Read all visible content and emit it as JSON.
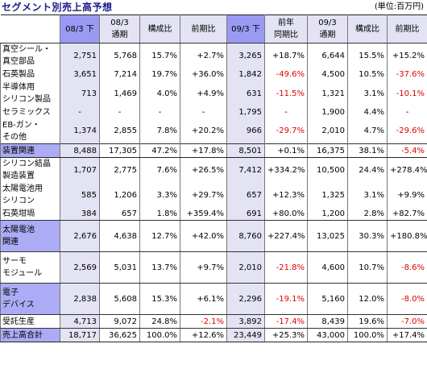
{
  "title": "セグメント別売上高予想",
  "unit": "(単位:百万円)",
  "columns": [
    {
      "label": "08/3 下",
      "style": "hb"
    },
    {
      "label": "08/3\n通期",
      "style": "lav"
    },
    {
      "label": "構成比",
      "style": "lav"
    },
    {
      "label": "前期比",
      "style": "lav"
    },
    {
      "label": "09/3 下",
      "style": "hb"
    },
    {
      "label": "前年\n同期比",
      "style": "lav"
    },
    {
      "label": "09/3\n通期",
      "style": "lav"
    },
    {
      "label": "構成比",
      "style": "lav"
    },
    {
      "label": "前期比",
      "style": "lav"
    }
  ],
  "rows": [
    {
      "label": "真空シール・\n真空部品",
      "h": 31,
      "cls": "",
      "label_style": "",
      "values": [
        "2,751",
        "5,768",
        "15.7%",
        "+2.7%",
        "3,265",
        "+18.7%",
        "6,644",
        "15.5%",
        "+15.2%"
      ]
    },
    {
      "label": "石英製品",
      "h": 16,
      "cls": "",
      "label_style": "",
      "values": [
        "3,651",
        "7,214",
        "19.7%",
        "+36.0%",
        "1,842",
        "-49.6%",
        "4,500",
        "10.5%",
        "-37.6%"
      ]
    },
    {
      "label": "半導体用\nシリコン製品",
      "h": 31,
      "cls": "",
      "label_style": "",
      "values": [
        "713",
        "1,469",
        "4.0%",
        "+4.9%",
        "631",
        "-11.5%",
        "1,321",
        "3.1%",
        "-10.1%"
      ]
    },
    {
      "label": "セラミックス",
      "h": 16,
      "cls": "",
      "label_style": "",
      "values": [
        "-",
        "-",
        "-",
        "-",
        "1,795",
        "-",
        "1,900",
        "4.4%",
        "-"
      ]
    },
    {
      "label": "EB-ガン・\nその他",
      "h": 31,
      "cls": "",
      "label_style": "",
      "values": [
        "1,374",
        "2,855",
        "7.8%",
        "+20.2%",
        "966",
        "-29.7%",
        "2,010",
        "4.7%",
        "-29.6%"
      ]
    },
    {
      "label": "装置関連",
      "h": 17,
      "cls": "subtotal",
      "label_style": "blue",
      "values": [
        "8,488",
        "17,305",
        "47.2%",
        "+17.8%",
        "8,501",
        "+0.1%",
        "16,375",
        "38.1%",
        "-5.4%"
      ]
    },
    {
      "label": "シリコン結晶\n製造装置",
      "h": 31,
      "cls": "",
      "label_style": "",
      "values": [
        "1,707",
        "2,775",
        "7.6%",
        "+26.5%",
        "7,412",
        "+334.2%",
        "10,500",
        "24.4%",
        "+278.4%"
      ]
    },
    {
      "label": "太陽電池用\nシリコン",
      "h": 31,
      "cls": "",
      "label_style": "",
      "values": [
        "585",
        "1,206",
        "3.3%",
        "+29.7%",
        "657",
        "+12.3%",
        "1,325",
        "3.1%",
        "+9.9%"
      ]
    },
    {
      "label": "石英坩堝",
      "h": 16,
      "cls": "sep",
      "label_style": "",
      "values": [
        "384",
        "657",
        "1.8%",
        "+359.4%",
        "691",
        "+80.0%",
        "1,200",
        "2.8%",
        "+82.7%"
      ]
    },
    {
      "label": "太陽電池\n関連",
      "h": 39,
      "cls": "sep",
      "label_style": "blue",
      "values": [
        "2,676",
        "4,638",
        "12.7%",
        "+42.0%",
        "8,760",
        "+227.4%",
        "13,025",
        "30.3%",
        "+180.8%"
      ]
    },
    {
      "label": "サーモ\nモジュール",
      "h": 39,
      "cls": "sep",
      "label_style": "",
      "values": [
        "2,569",
        "5,031",
        "13.7%",
        "+9.7%",
        "2,010",
        "-21.8%",
        "4,600",
        "10.7%",
        "-8.6%"
      ]
    },
    {
      "label": "電子\nデバイス",
      "h": 39,
      "cls": "sep",
      "label_style": "blue",
      "values": [
        "2,838",
        "5,608",
        "15.3%",
        "+6.1%",
        "2,296",
        "-19.1%",
        "5,160",
        "12.0%",
        "-8.0%"
      ]
    },
    {
      "label": "受託生産",
      "h": 17,
      "cls": "sep",
      "label_style": "",
      "values": [
        "4,713",
        "9,072",
        "24.8%",
        "-2.1%",
        "3,892",
        "-17.4%",
        "8,439",
        "19.6%",
        "-7.0%"
      ]
    },
    {
      "label": "売上高合計",
      "h": 17,
      "cls": "total",
      "label_style": "blue",
      "values": [
        "18,717",
        "36,625",
        "100.0%",
        "+12.6%",
        "23,449",
        "+25.3%",
        "43,000",
        "100.0%",
        "+17.4%"
      ]
    }
  ]
}
